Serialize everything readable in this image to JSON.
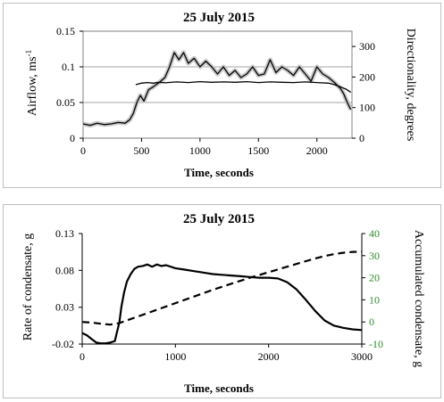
{
  "colors": {
    "line": "#000000",
    "band": "#c8c8c8",
    "grid": "#a6a6a6",
    "right_axis_ticks_bottom": "#2e8b2e"
  },
  "chart_data": [
    {
      "type": "line",
      "title": "25 July 2015",
      "xlabel": "Time, seconds",
      "ylabel": "Airflow, ms",
      "ylabel_sup": "-1",
      "y2label": "Directionality, degrees",
      "xlim": [
        0,
        2300
      ],
      "ylim": [
        0,
        0.15
      ],
      "y2lim": [
        0,
        350
      ],
      "xticks": [
        "0",
        "500",
        "1000",
        "1500",
        "2000"
      ],
      "xtick_values": [
        0,
        500,
        1000,
        1500,
        2000
      ],
      "yticks": [
        "0",
        "0.05",
        "0.1",
        "0.15"
      ],
      "ytick_values": [
        0,
        0.05,
        0.1,
        0.15
      ],
      "y2ticks": [
        "0",
        "100",
        "200",
        "300"
      ],
      "y2tick_values": [
        0,
        100,
        200,
        300
      ],
      "grid": "horizontal",
      "series": [
        {
          "axis": "left",
          "style": "solid",
          "x": [
            0,
            60,
            120,
            180,
            240,
            300,
            360,
            400,
            430,
            460,
            490,
            520,
            560,
            600,
            650,
            700,
            740,
            780,
            820,
            860,
            900,
            950,
            1000,
            1050,
            1100,
            1150,
            1200,
            1250,
            1300,
            1350,
            1400,
            1450,
            1500,
            1550,
            1600,
            1650,
            1700,
            1750,
            1800,
            1850,
            1900,
            1950,
            2000,
            2050,
            2100,
            2150,
            2200,
            2230,
            2260,
            2290
          ],
          "y": [
            0.02,
            0.018,
            0.021,
            0.019,
            0.02,
            0.022,
            0.021,
            0.026,
            0.035,
            0.05,
            0.06,
            0.052,
            0.068,
            0.072,
            0.078,
            0.085,
            0.1,
            0.12,
            0.11,
            0.12,
            0.105,
            0.112,
            0.1,
            0.108,
            0.1,
            0.09,
            0.1,
            0.088,
            0.095,
            0.085,
            0.09,
            0.1,
            0.088,
            0.09,
            0.11,
            0.092,
            0.1,
            0.095,
            0.088,
            0.1,
            0.09,
            0.08,
            0.1,
            0.09,
            0.085,
            0.078,
            0.07,
            0.062,
            0.05,
            0.04
          ]
        },
        {
          "axis": "right",
          "style": "solid",
          "x": [
            450,
            500,
            550,
            600,
            650,
            700,
            800,
            900,
            1000,
            1100,
            1200,
            1300,
            1400,
            1500,
            1600,
            1700,
            1800,
            1900,
            2000,
            2100,
            2150,
            2200,
            2250,
            2290
          ],
          "y": [
            175,
            180,
            182,
            180,
            183,
            181,
            184,
            182,
            185,
            183,
            184,
            183,
            185,
            182,
            184,
            183,
            182,
            184,
            182,
            180,
            175,
            168,
            160,
            150
          ]
        }
      ]
    },
    {
      "type": "line",
      "title": "25 July 2015",
      "xlabel": "Time, seconds",
      "ylabel": "Rate of condensate, g",
      "y2label": "Accumulated condensate, g",
      "xlim": [
        0,
        3000
      ],
      "ylim": [
        -0.02,
        0.13
      ],
      "y2lim": [
        -10,
        40
      ],
      "xticks": [
        "0",
        "1000",
        "2000",
        "3000"
      ],
      "xtick_values": [
        0,
        1000,
        2000,
        3000
      ],
      "yticks": [
        "-0.02",
        "0.03",
        "0.08",
        "0.13"
      ],
      "ytick_values": [
        -0.02,
        0.03,
        0.08,
        0.13
      ],
      "y2ticks": [
        "-10",
        "0",
        "10",
        "20",
        "30",
        "40"
      ],
      "y2tick_values": [
        -10,
        0,
        10,
        20,
        30,
        40
      ],
      "grid": "none",
      "series": [
        {
          "axis": "left",
          "style": "solid",
          "x": [
            0,
            50,
            100,
            150,
            200,
            250,
            300,
            350,
            400,
            420,
            450,
            480,
            520,
            560,
            600,
            650,
            700,
            750,
            800,
            850,
            900,
            1000,
            1100,
            1200,
            1300,
            1400,
            1500,
            1600,
            1700,
            1800,
            1900,
            2000,
            2100,
            2200,
            2300,
            2400,
            2500,
            2600,
            2700,
            2800,
            2900,
            3000
          ],
          "y": [
            -0.005,
            -0.008,
            -0.013,
            -0.018,
            -0.019,
            -0.019,
            -0.018,
            -0.016,
            0.01,
            0.03,
            0.05,
            0.065,
            0.075,
            0.082,
            0.085,
            0.086,
            0.088,
            0.085,
            0.088,
            0.086,
            0.087,
            0.083,
            0.081,
            0.079,
            0.077,
            0.075,
            0.074,
            0.073,
            0.072,
            0.071,
            0.07,
            0.07,
            0.069,
            0.064,
            0.054,
            0.04,
            0.025,
            0.012,
            0.005,
            0.002,
            0.0,
            -0.001
          ]
        },
        {
          "axis": "right",
          "style": "dashed",
          "x": [
            0,
            100,
            200,
            300,
            400,
            500,
            600,
            800,
            1000,
            1200,
            1400,
            1600,
            1800,
            2000,
            2200,
            2400,
            2500,
            2600,
            2700,
            2800,
            2900,
            3000
          ],
          "y": [
            0,
            -0.3,
            -0.8,
            -1.2,
            -0.5,
            1.0,
            2.5,
            5.5,
            8.5,
            11.5,
            14.5,
            17.3,
            20.0,
            22.5,
            25.0,
            27.5,
            28.7,
            29.8,
            30.7,
            31.3,
            31.7,
            31.8
          ]
        }
      ]
    }
  ]
}
